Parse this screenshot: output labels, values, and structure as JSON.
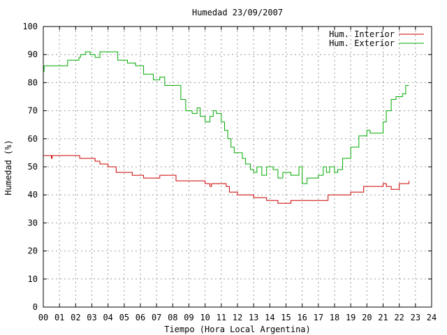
{
  "chart_data": {
    "type": "line",
    "title": "Humedad 23/09/2007",
    "xlabel": "Tiempo (Hora Local Argentina)",
    "ylabel": "Humedad (%)",
    "xlim": [
      0,
      24
    ],
    "ylim": [
      0,
      100
    ],
    "grid": true,
    "legend_position": "top-right",
    "xticks": [
      {
        "v": 0,
        "label": "00"
      },
      {
        "v": 1,
        "label": "01"
      },
      {
        "v": 2,
        "label": "02"
      },
      {
        "v": 3,
        "label": "03"
      },
      {
        "v": 4,
        "label": "04"
      },
      {
        "v": 5,
        "label": "05"
      },
      {
        "v": 6,
        "label": "06"
      },
      {
        "v": 7,
        "label": "07"
      },
      {
        "v": 8,
        "label": "08"
      },
      {
        "v": 9,
        "label": "09"
      },
      {
        "v": 10,
        "label": "10"
      },
      {
        "v": 11,
        "label": "11"
      },
      {
        "v": 12,
        "label": "12"
      },
      {
        "v": 13,
        "label": "13"
      },
      {
        "v": 14,
        "label": "14"
      },
      {
        "v": 15,
        "label": "15"
      },
      {
        "v": 16,
        "label": "16"
      },
      {
        "v": 17,
        "label": "17"
      },
      {
        "v": 18,
        "label": "18"
      },
      {
        "v": 19,
        "label": "19"
      },
      {
        "v": 20,
        "label": "20"
      },
      {
        "v": 21,
        "label": "21"
      },
      {
        "v": 22,
        "label": "22"
      },
      {
        "v": 23,
        "label": "23"
      },
      {
        "v": 24,
        "label": "24"
      }
    ],
    "yticks": [
      {
        "v": 0,
        "label": "0"
      },
      {
        "v": 10,
        "label": "10"
      },
      {
        "v": 20,
        "label": "20"
      },
      {
        "v": 30,
        "label": "30"
      },
      {
        "v": 40,
        "label": "40"
      },
      {
        "v": 50,
        "label": "50"
      },
      {
        "v": 60,
        "label": "60"
      },
      {
        "v": 70,
        "label": "70"
      },
      {
        "v": 80,
        "label": "80"
      },
      {
        "v": 90,
        "label": "90"
      },
      {
        "v": 100,
        "label": "100"
      }
    ],
    "series": [
      {
        "name": "Hum. Interior",
        "color": "#cc0000",
        "x": [
          0.0,
          0.4,
          0.5,
          0.55,
          2.25,
          3.2,
          3.5,
          4.0,
          4.5,
          5.5,
          6.2,
          7.2,
          8.2,
          9.0,
          10.0,
          10.3,
          10.4,
          11.3,
          11.5,
          12.0,
          12.5,
          13.0,
          13.8,
          14.5,
          15.3,
          16.0,
          17.2,
          17.6,
          18.5,
          19.0,
          19.8,
          21.0,
          21.2,
          21.5,
          22.0,
          22.6
        ],
        "y": [
          54,
          54,
          53,
          54,
          53,
          52,
          51,
          50,
          48,
          47,
          46,
          47,
          45,
          45,
          44,
          43,
          44,
          43,
          41,
          40,
          40,
          39,
          38,
          37,
          38,
          38,
          38,
          40,
          40,
          41,
          43,
          44,
          43,
          42,
          44,
          45
        ]
      },
      {
        "name": "Hum. Exterior",
        "color": "#00aa00",
        "x": [
          0.0,
          0.05,
          1.0,
          1.5,
          2.2,
          2.3,
          2.6,
          2.9,
          3.2,
          3.5,
          4.2,
          4.6,
          5.2,
          5.7,
          6.2,
          6.8,
          7.0,
          7.2,
          7.5,
          8.0,
          8.5,
          8.8,
          9.2,
          9.5,
          9.7,
          10.0,
          10.3,
          10.5,
          10.7,
          11.0,
          11.2,
          11.4,
          11.6,
          11.8,
          12.0,
          12.3,
          12.5,
          12.8,
          13.0,
          13.2,
          13.5,
          13.8,
          14.0,
          14.2,
          14.5,
          14.8,
          15.0,
          15.3,
          15.5,
          15.8,
          16.0,
          16.3,
          16.5,
          17.0,
          17.3,
          17.5,
          17.7,
          18.0,
          18.2,
          18.5,
          19.0,
          19.5,
          20.0,
          20.2,
          20.5,
          21.0,
          21.2,
          21.5,
          21.8,
          22.0,
          22.2,
          22.4,
          22.6
        ],
        "y": [
          84,
          86,
          86,
          88,
          89,
          90,
          91,
          90,
          89,
          91,
          91,
          88,
          87,
          86,
          83,
          81,
          81,
          82,
          79,
          79,
          74,
          70,
          69,
          71,
          68,
          66,
          68,
          70,
          69,
          66,
          63,
          60,
          57,
          55,
          55,
          53,
          51,
          49,
          48,
          50,
          47,
          50,
          50,
          49,
          46,
          48,
          48,
          47,
          47,
          50,
          44,
          46,
          46,
          47,
          50,
          48,
          50,
          48,
          49,
          53,
          57,
          61,
          63,
          62,
          62,
          66,
          70,
          74,
          75,
          75,
          76,
          79,
          79
        ]
      }
    ]
  }
}
